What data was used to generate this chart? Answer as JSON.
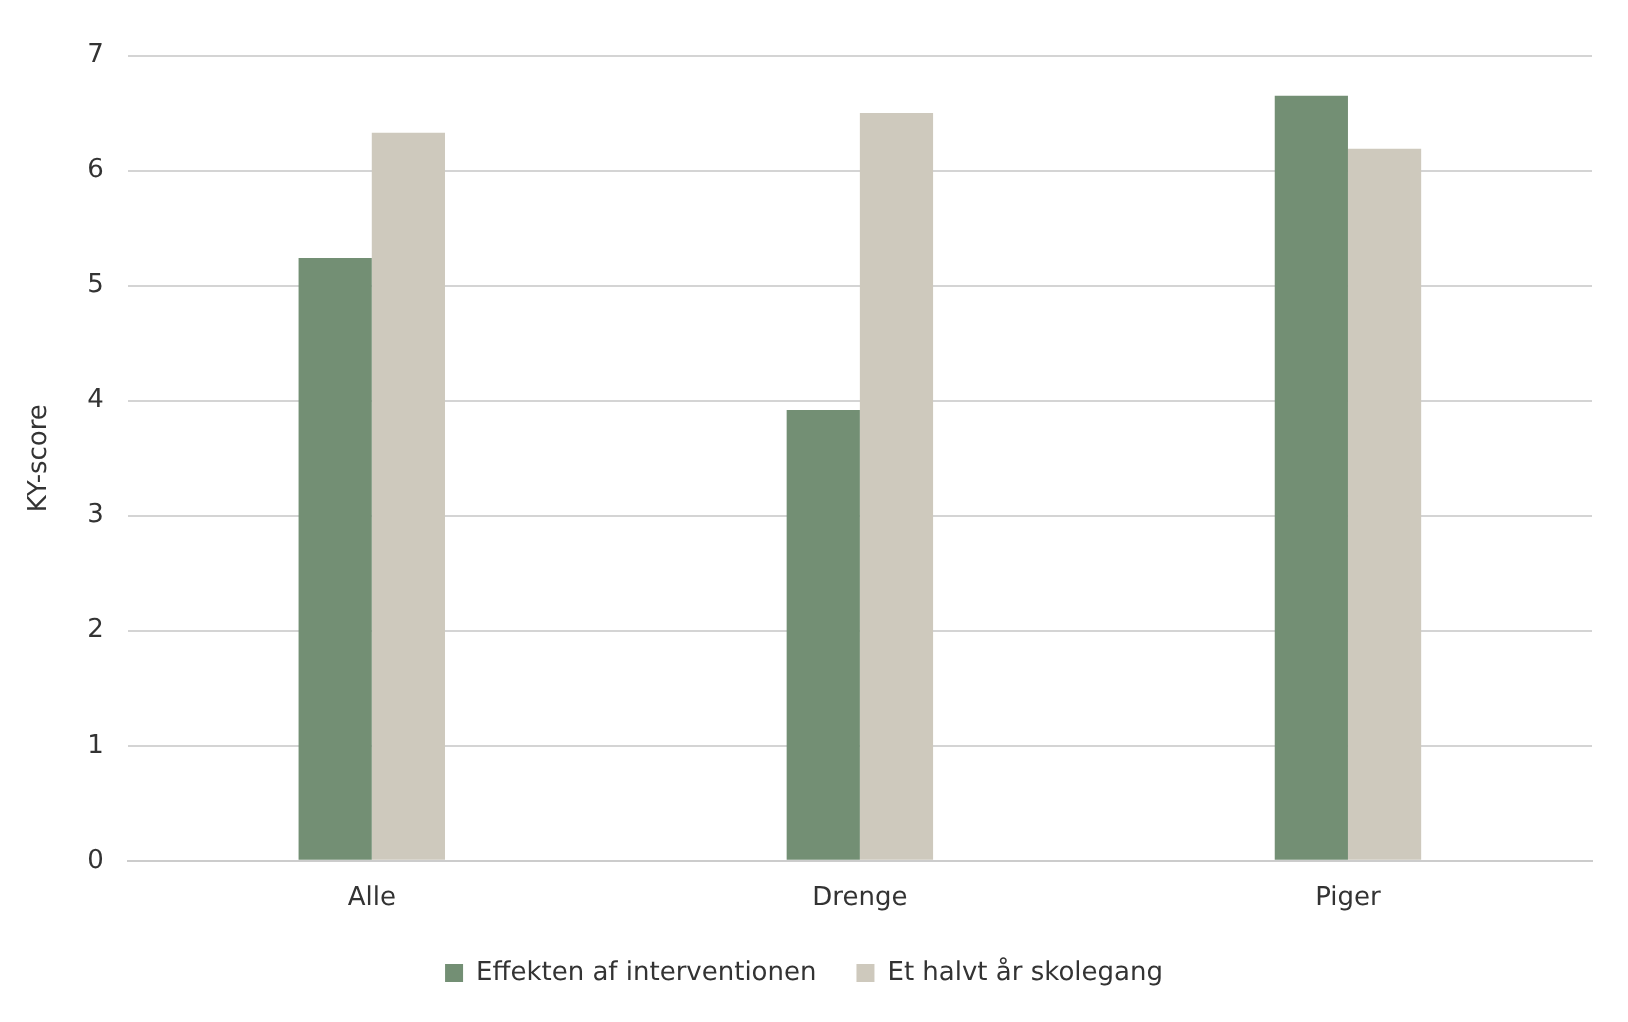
{
  "chart_data": {
    "type": "bar",
    "ylabel": "KY-score",
    "categories": [
      "Alle",
      "Drenge",
      "Piger"
    ],
    "series": [
      {
        "name": "Effekten af interventionen",
        "color": "#738f74",
        "values": [
          5.24,
          3.92,
          6.65
        ]
      },
      {
        "name": "Et halvt år skolegang",
        "color": "#cec9bd",
        "values": [
          6.33,
          6.5,
          6.19
        ]
      }
    ],
    "ylim": [
      0,
      7
    ],
    "yticks": [
      0,
      1,
      2,
      3,
      4,
      5,
      6,
      7
    ],
    "grid": "y",
    "legend": "bottom"
  }
}
